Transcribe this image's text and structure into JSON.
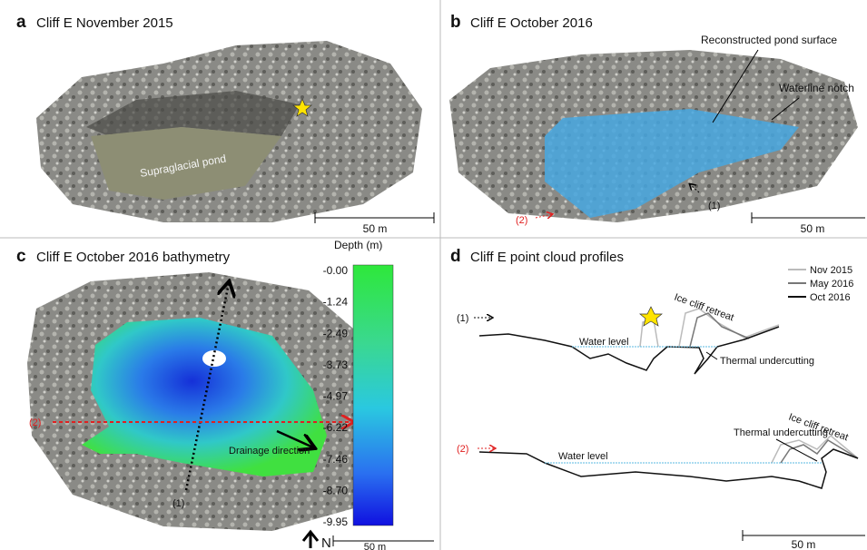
{
  "panels": [
    {
      "letter": "a",
      "title": "Cliff E November 2015",
      "pond_label": "Supraglacial pond",
      "scale": "50 m"
    },
    {
      "letter": "b",
      "title": "Cliff E October 2016",
      "pond_label": "Reconstructed pond surface",
      "notch_label": "Waterline notch",
      "profile_1": "(1)",
      "profile_2": "(2)",
      "scale": "50 m"
    },
    {
      "letter": "c",
      "title": "Cliff E October 2016 bathymetry",
      "colorbar_title": "Depth (m)",
      "colorbar_ticks": [
        "-0.00",
        "-1.24",
        "-2.49",
        "-3.73",
        "-4.97",
        "-6.22",
        "-7.46",
        "-8.70",
        "-9.95"
      ],
      "profile_1": "(1)",
      "profile_2": "(2)",
      "drainage_label": "Drainage direction",
      "north": "N",
      "scale": "50 m"
    },
    {
      "letter": "d",
      "title": "Cliff E point cloud profiles",
      "legend": [
        "Nov 2015",
        "May 2016",
        "Oct 2016"
      ],
      "profile_1": "(1)",
      "profile_2": "(2)",
      "retreat_1": "Ice cliff retreat",
      "water_1": "Water level",
      "undercut_1": "Thermal undercutting",
      "retreat_2": "Ice cliff retreat",
      "water_2": "Water level",
      "undercut_2": "Thermal undercutting",
      "scale": "50 m"
    }
  ]
}
